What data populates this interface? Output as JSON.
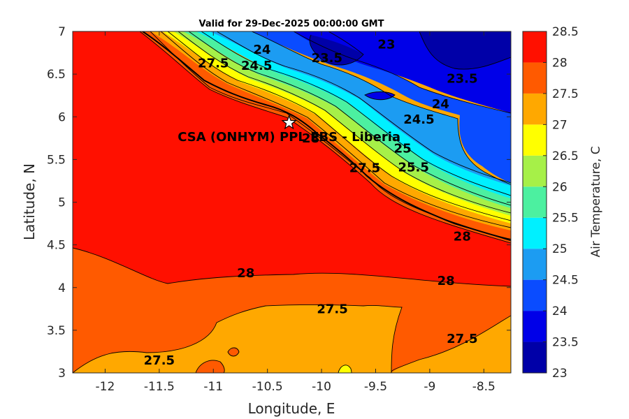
{
  "chart_data": {
    "type": "contour",
    "title": "Valid for 29-Dec-2025 00:00:00 GMT",
    "xlabel": "Longitude, E",
    "ylabel": "Latitude, N",
    "xlim": [
      -12.3,
      -8.25
    ],
    "ylim": [
      3,
      7
    ],
    "xticks": [
      "-12",
      "-11.5",
      "-11",
      "-10.5",
      "-10",
      "-9.5",
      "-9",
      "-8.5"
    ],
    "yticks": [
      "3",
      "3.5",
      "4",
      "4.5",
      "5",
      "5.5",
      "6",
      "6.5",
      "7"
    ],
    "colorbar": {
      "label": "Air Temperature, C",
      "ticks": [
        "23",
        "23.5",
        "24",
        "24.5",
        "25",
        "25.5",
        "26",
        "26.5",
        "27",
        "27.5",
        "28",
        "28.5"
      ],
      "levels": [
        23,
        23.5,
        24,
        24.5,
        25,
        25.5,
        26,
        26.5,
        27,
        27.5,
        28,
        28.5
      ],
      "colors": [
        "#0000a8",
        "#0000e8",
        "#0a4cff",
        "#1c9cf2",
        "#00f0ff",
        "#4cf0a0",
        "#a6f048",
        "#ffff00",
        "#ffa800",
        "#ff5a00",
        "#ff1000",
        "#b00000"
      ]
    },
    "contour_labels": [
      {
        "text": "23",
        "lon": -9.4,
        "lat": 6.8
      },
      {
        "text": "23.5",
        "lon": -9.95,
        "lat": 6.64
      },
      {
        "text": "23.5",
        "lon": -8.7,
        "lat": 6.4
      },
      {
        "text": "24",
        "lon": -10.55,
        "lat": 6.74
      },
      {
        "text": "24",
        "lon": -8.9,
        "lat": 6.1
      },
      {
        "text": "24.5",
        "lon": -10.6,
        "lat": 6.55
      },
      {
        "text": "24.5",
        "lon": -9.1,
        "lat": 5.92
      },
      {
        "text": "25",
        "lon": -9.25,
        "lat": 5.58
      },
      {
        "text": "25.5",
        "lon": -9.15,
        "lat": 5.36
      },
      {
        "text": "27.5",
        "lon": -11.0,
        "lat": 6.58
      },
      {
        "text": "27.5",
        "lon": -9.6,
        "lat": 5.35
      },
      {
        "text": "28",
        "lon": -10.1,
        "lat": 5.7
      },
      {
        "text": "28",
        "lon": -8.7,
        "lat": 4.55
      },
      {
        "text": "28",
        "lon": -10.7,
        "lat": 4.12
      },
      {
        "text": "28",
        "lon": -8.85,
        "lat": 4.03
      },
      {
        "text": "27.5",
        "lon": -9.9,
        "lat": 3.7
      },
      {
        "text": "27.5",
        "lon": -11.5,
        "lat": 3.1
      },
      {
        "text": "27.5",
        "lon": -8.7,
        "lat": 3.35
      }
    ],
    "marker": {
      "label": "CSA (ONHYM) PPL EBS  - Liberia",
      "lon": -10.3,
      "lat": 5.93
    }
  }
}
